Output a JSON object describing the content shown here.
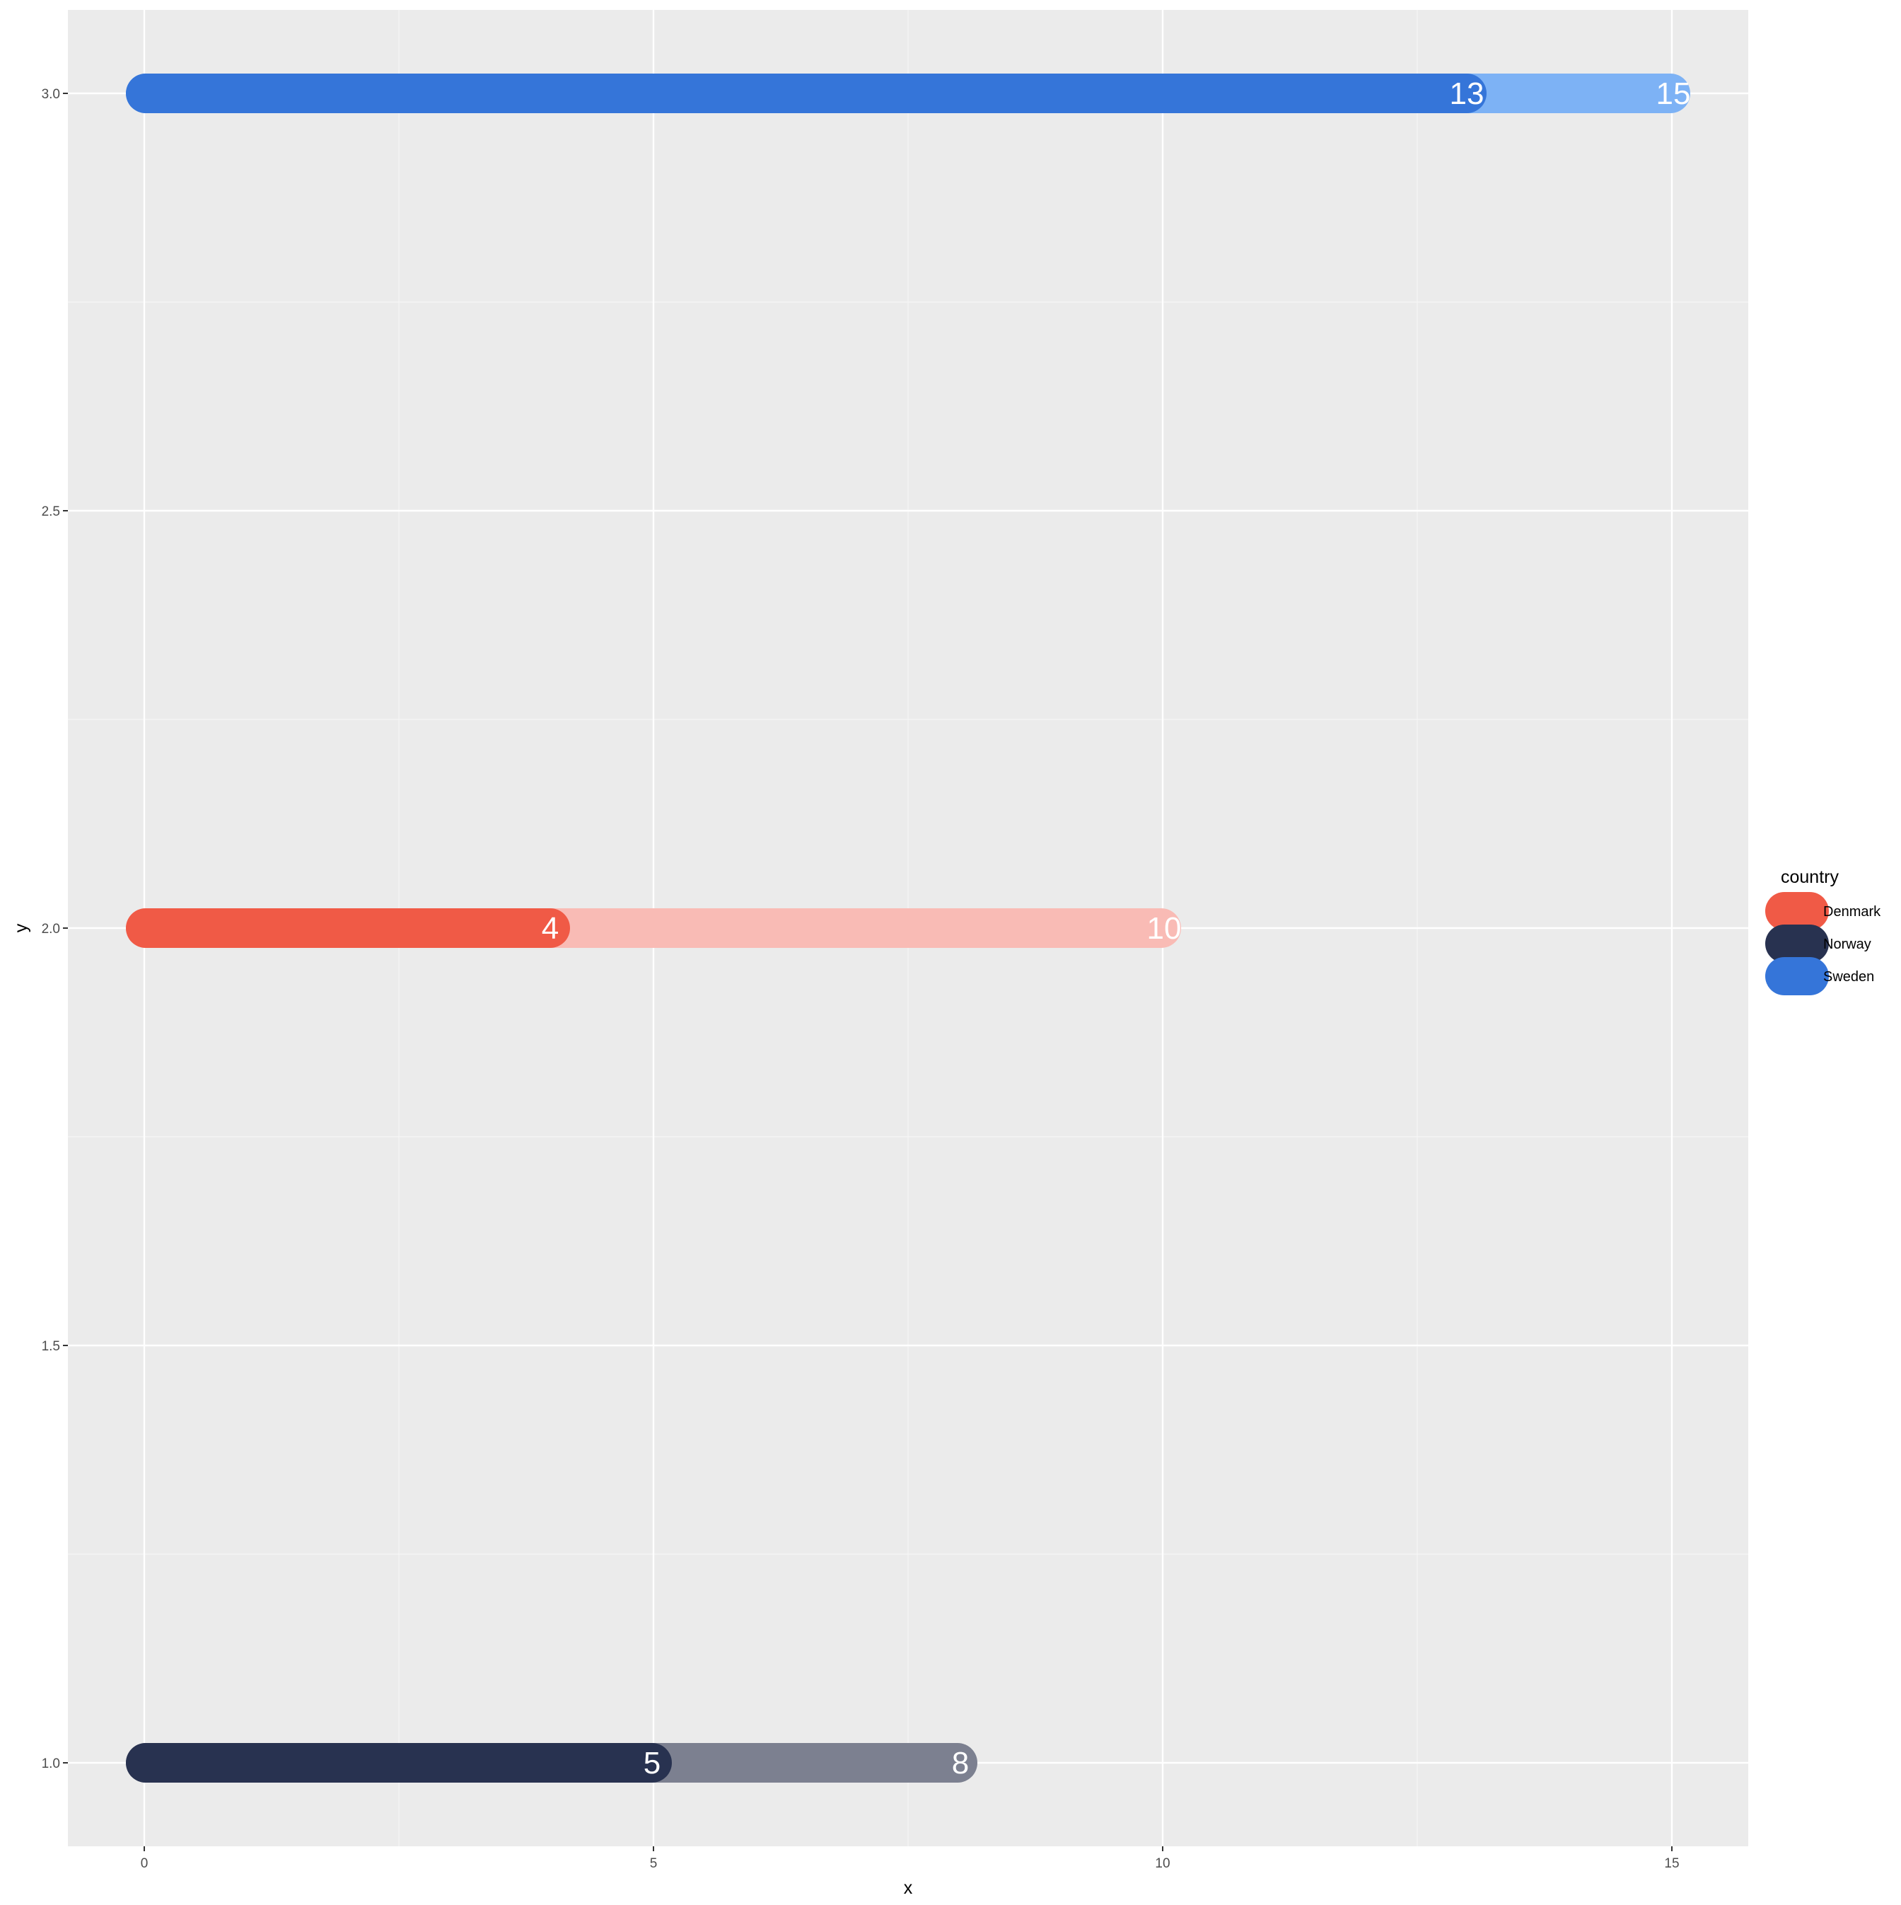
{
  "chart_data": {
    "type": "bar",
    "xlabel": "x",
    "ylabel": "y",
    "xlim": [
      -0.75,
      15.75
    ],
    "ylim": [
      0.9,
      3.1
    ],
    "x_ticks": [
      0,
      5,
      10,
      15
    ],
    "y_ticks": [
      1.0,
      1.5,
      2.0,
      2.5,
      3.0
    ],
    "x_tick_labels": [
      "0",
      "5",
      "10",
      "15"
    ],
    "y_tick_labels": [
      "1.0",
      "1.5",
      "2.0",
      "2.5",
      "3.0"
    ],
    "grid": true,
    "panel_background": "#EBEBEB",
    "legend": {
      "title": "country",
      "position": "right",
      "entries": [
        {
          "name": "Denmark",
          "color": "#F05A46"
        },
        {
          "name": "Norway",
          "color": "#283250"
        },
        {
          "name": "Sweden",
          "color": "#3575D9"
        }
      ]
    },
    "series": [
      {
        "name": "Norway",
        "y": 1,
        "value": 5,
        "total": 8,
        "color": "#283250",
        "total_color": "#7C8090",
        "value_label": "5",
        "total_label": "8"
      },
      {
        "name": "Denmark",
        "y": 2,
        "value": 4,
        "total": 10,
        "color": "#F05A46",
        "total_color": "#F9BBB5",
        "value_label": "4",
        "total_label": "10"
      },
      {
        "name": "Sweden",
        "y": 3,
        "value": 13,
        "total": 15,
        "color": "#3575D9",
        "total_color": "#7DB2F5",
        "value_label": "13",
        "total_label": "15"
      }
    ]
  }
}
